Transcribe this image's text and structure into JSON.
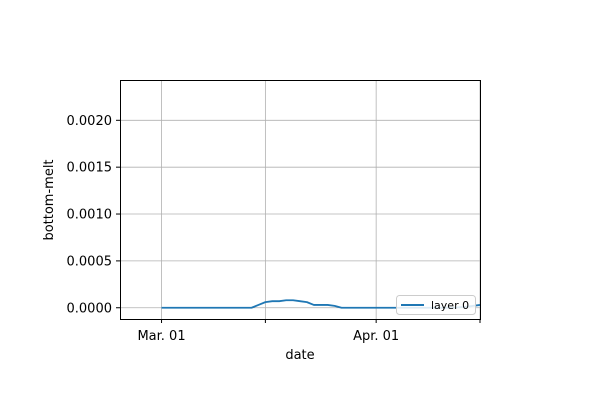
{
  "chart_data": {
    "type": "line",
    "title": "",
    "xlabel": "date",
    "ylabel": "bottom-melt",
    "x_ticks": [
      {
        "date": "2023-03-01",
        "label": "Mar. 01"
      },
      {
        "date": "2023-03-16",
        "label": ""
      },
      {
        "date": "2023-04-01",
        "label": "Apr. 01"
      },
      {
        "date": "2023-04-16",
        "label": ""
      }
    ],
    "y_ticks": [
      0.0,
      0.0005,
      0.001,
      0.0015,
      0.002
    ],
    "y_tick_labels": [
      "0.0000",
      "0.0005",
      "0.0010",
      "0.0015",
      "0.0020"
    ],
    "xlim": [
      "2023-02-23",
      "2023-04-16"
    ],
    "ylim": [
      -0.00012,
      0.00243
    ],
    "grid": true,
    "legend_placement": "lower-right",
    "series": [
      {
        "name": "layer 0",
        "color": "#1f77b4",
        "x": [
          "2023-03-01",
          "2023-03-05",
          "2023-03-10",
          "2023-03-14",
          "2023-03-15",
          "2023-03-16",
          "2023-03-17",
          "2023-03-18",
          "2023-03-19",
          "2023-03-20",
          "2023-03-21",
          "2023-03-22",
          "2023-03-23",
          "2023-03-24",
          "2023-03-25",
          "2023-03-26",
          "2023-03-27",
          "2023-03-28",
          "2023-03-29",
          "2023-03-30",
          "2023-04-01",
          "2023-04-05",
          "2023-04-10",
          "2023-04-12",
          "2023-04-14",
          "2023-04-16"
        ],
        "y": [
          0.0,
          0.0,
          0.0,
          0.0,
          3e-05,
          6e-05,
          7e-05,
          7e-05,
          8e-05,
          8e-05,
          7e-05,
          6e-05,
          3e-05,
          3e-05,
          3e-05,
          2e-05,
          0.0,
          0.0,
          0.0,
          0.0,
          0.0,
          0.0,
          0.0,
          0.0,
          1e-05,
          3e-05
        ]
      }
    ]
  }
}
